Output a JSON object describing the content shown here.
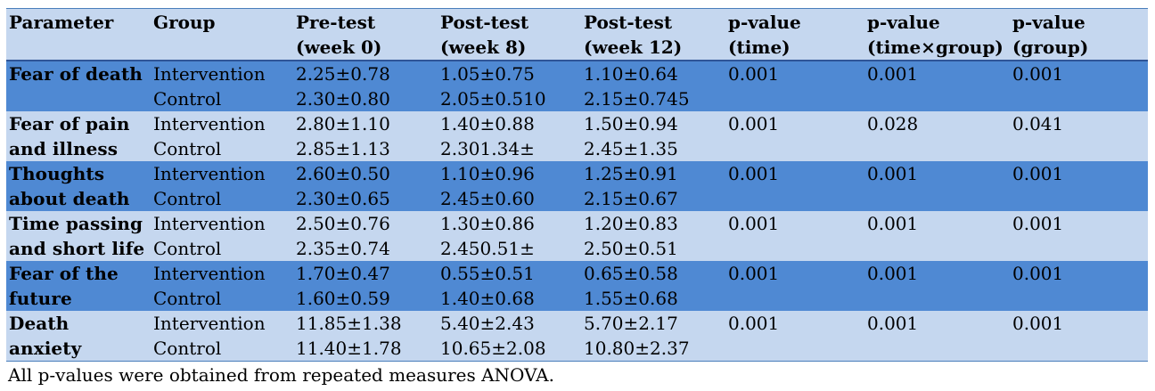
{
  "table": {
    "headers": [
      [
        "Parameter",
        ""
      ],
      [
        "Group",
        ""
      ],
      [
        "Pre-test",
        "(week 0)"
      ],
      [
        "Post-test",
        "(week 8)"
      ],
      [
        "Post-test",
        "(week 12)"
      ],
      [
        "p-value",
        "(time)"
      ],
      [
        "p-value",
        "(time×group)"
      ],
      [
        "p-value",
        "(group)"
      ]
    ],
    "rows": [
      {
        "parameter": [
          "Fear of death",
          ""
        ],
        "groups": [
          "Intervention",
          "Control"
        ],
        "pre": [
          "2.25±0.78",
          "2.30±0.80"
        ],
        "post8": [
          "1.05±0.75",
          "2.05±0.510"
        ],
        "post12": [
          "1.10±0.64",
          "2.15±0.745"
        ],
        "p_time": "0.001",
        "p_interaction": "0.001",
        "p_group": "0.001"
      },
      {
        "parameter": [
          "Fear of pain",
          "and illness"
        ],
        "groups": [
          "Intervention",
          "Control"
        ],
        "pre": [
          "2.80±1.10",
          "2.85±1.13"
        ],
        "post8": [
          "1.40±0.88",
          "2.301.34±"
        ],
        "post12": [
          "1.50±0.94",
          "2.45±1.35"
        ],
        "p_time": "0.001",
        "p_interaction": "0.028",
        "p_group": "0.041"
      },
      {
        "parameter": [
          "Thoughts",
          "about death"
        ],
        "groups": [
          "Intervention",
          "Control"
        ],
        "pre": [
          "2.60±0.50",
          "2.30±0.65"
        ],
        "post8": [
          "1.10±0.96",
          "2.45±0.60"
        ],
        "post12": [
          "1.25±0.91",
          "2.15±0.67"
        ],
        "p_time": "0.001",
        "p_interaction": "0.001",
        "p_group": "0.001"
      },
      {
        "parameter": [
          "Time passing",
          "and short life"
        ],
        "groups": [
          "Intervention",
          "Control"
        ],
        "pre": [
          "2.50±0.76",
          "2.35±0.74"
        ],
        "post8": [
          "1.30±0.86",
          "2.450.51±"
        ],
        "post12": [
          "1.20±0.83",
          "2.50±0.51"
        ],
        "p_time": "0.001",
        "p_interaction": "0.001",
        "p_group": "0.001"
      },
      {
        "parameter": [
          "Fear of the",
          "future"
        ],
        "groups": [
          "Intervention",
          "Control"
        ],
        "pre": [
          "1.70±0.47",
          "1.60±0.59"
        ],
        "post8": [
          "0.55±0.51",
          "1.40±0.68"
        ],
        "post12": [
          "0.65±0.58",
          "1.55±0.68"
        ],
        "p_time": "0.001",
        "p_interaction": "0.001",
        "p_group": "0.001"
      },
      {
        "parameter": [
          "Death",
          "anxiety"
        ],
        "groups": [
          "Intervention",
          "Control"
        ],
        "pre": [
          "11.85±1.38",
          "11.40±1.78"
        ],
        "post8": [
          "5.40±2.43",
          "10.65±2.08"
        ],
        "post12": [
          "5.70±2.17",
          "10.80±2.37"
        ],
        "p_time": "0.001",
        "p_interaction": "0.001",
        "p_group": "0.001"
      }
    ]
  },
  "footnote": "All p-values were obtained from repeated measures ANOVA.",
  "colors": {
    "dark_row": "#4f89d3",
    "light_row": "#c5d7ef"
  }
}
